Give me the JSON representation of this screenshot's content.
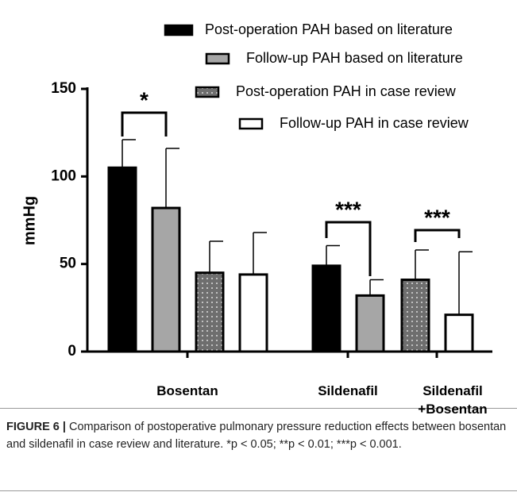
{
  "chart_data": {
    "type": "bar",
    "y_label": "mmHg",
    "categories": [
      "Bosentan",
      "Sildenafil",
      "Sildenafil +Bosentan"
    ],
    "series": [
      {
        "name": "Post-operation PAH based on literature",
        "color": "#000000",
        "values": [
          105,
          49,
          null
        ],
        "errors": [
          16,
          11.5,
          null
        ]
      },
      {
        "name": "Follow-up PAH based on literature",
        "color": "#a6a6a6",
        "values": [
          82,
          32,
          null
        ],
        "errors": [
          34,
          9,
          null
        ]
      },
      {
        "name": "Post-operation PAH in case review",
        "color": "#6e6e6e",
        "hatch": "dots",
        "values": [
          45,
          null,
          41
        ],
        "errors": [
          18,
          null,
          17
        ]
      },
      {
        "name": "Follow-up PAH in case review",
        "color": "#ffffff",
        "values": [
          44,
          null,
          21
        ],
        "errors": [
          24,
          null,
          36
        ]
      }
    ],
    "annotations": [
      "*",
      "***",
      "***"
    ],
    "ylim": [
      0,
      150
    ],
    "yticks": [
      0,
      50,
      100,
      150
    ],
    "legend": "top-right"
  },
  "caption": {
    "label": "FIGURE 6 |",
    "text": "Comparison of postoperative pulmonary pressure reduction effects between bosentan and sildenafil in case review and literature. *p < 0.05; **p < 0.01; ***p < 0.001."
  }
}
